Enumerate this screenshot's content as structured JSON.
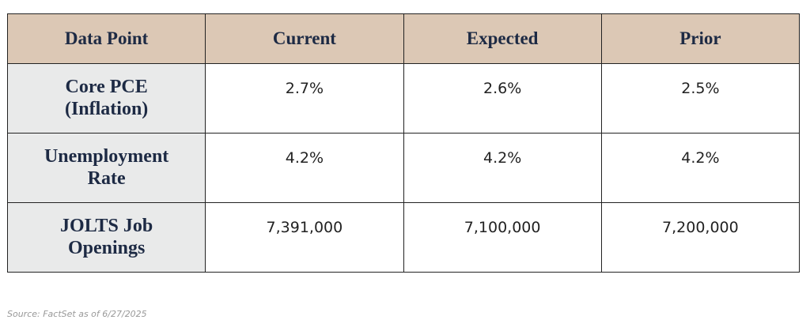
{
  "table": {
    "header": [
      "Data Point",
      "Current",
      "Expected",
      "Prior"
    ],
    "rows": [
      [
        "Core PCE (Inflation)",
        "2.7%",
        "2.6%",
        "2.5%"
      ],
      [
        "Unemployment Rate",
        "4.2%",
        "4.2%",
        "4.2%"
      ],
      [
        "JOLTS Job Openings",
        "7,391,000",
        "7,100,000",
        "7,200,000"
      ]
    ]
  },
  "source": "Source: FactSet as of 6/27/2025"
}
